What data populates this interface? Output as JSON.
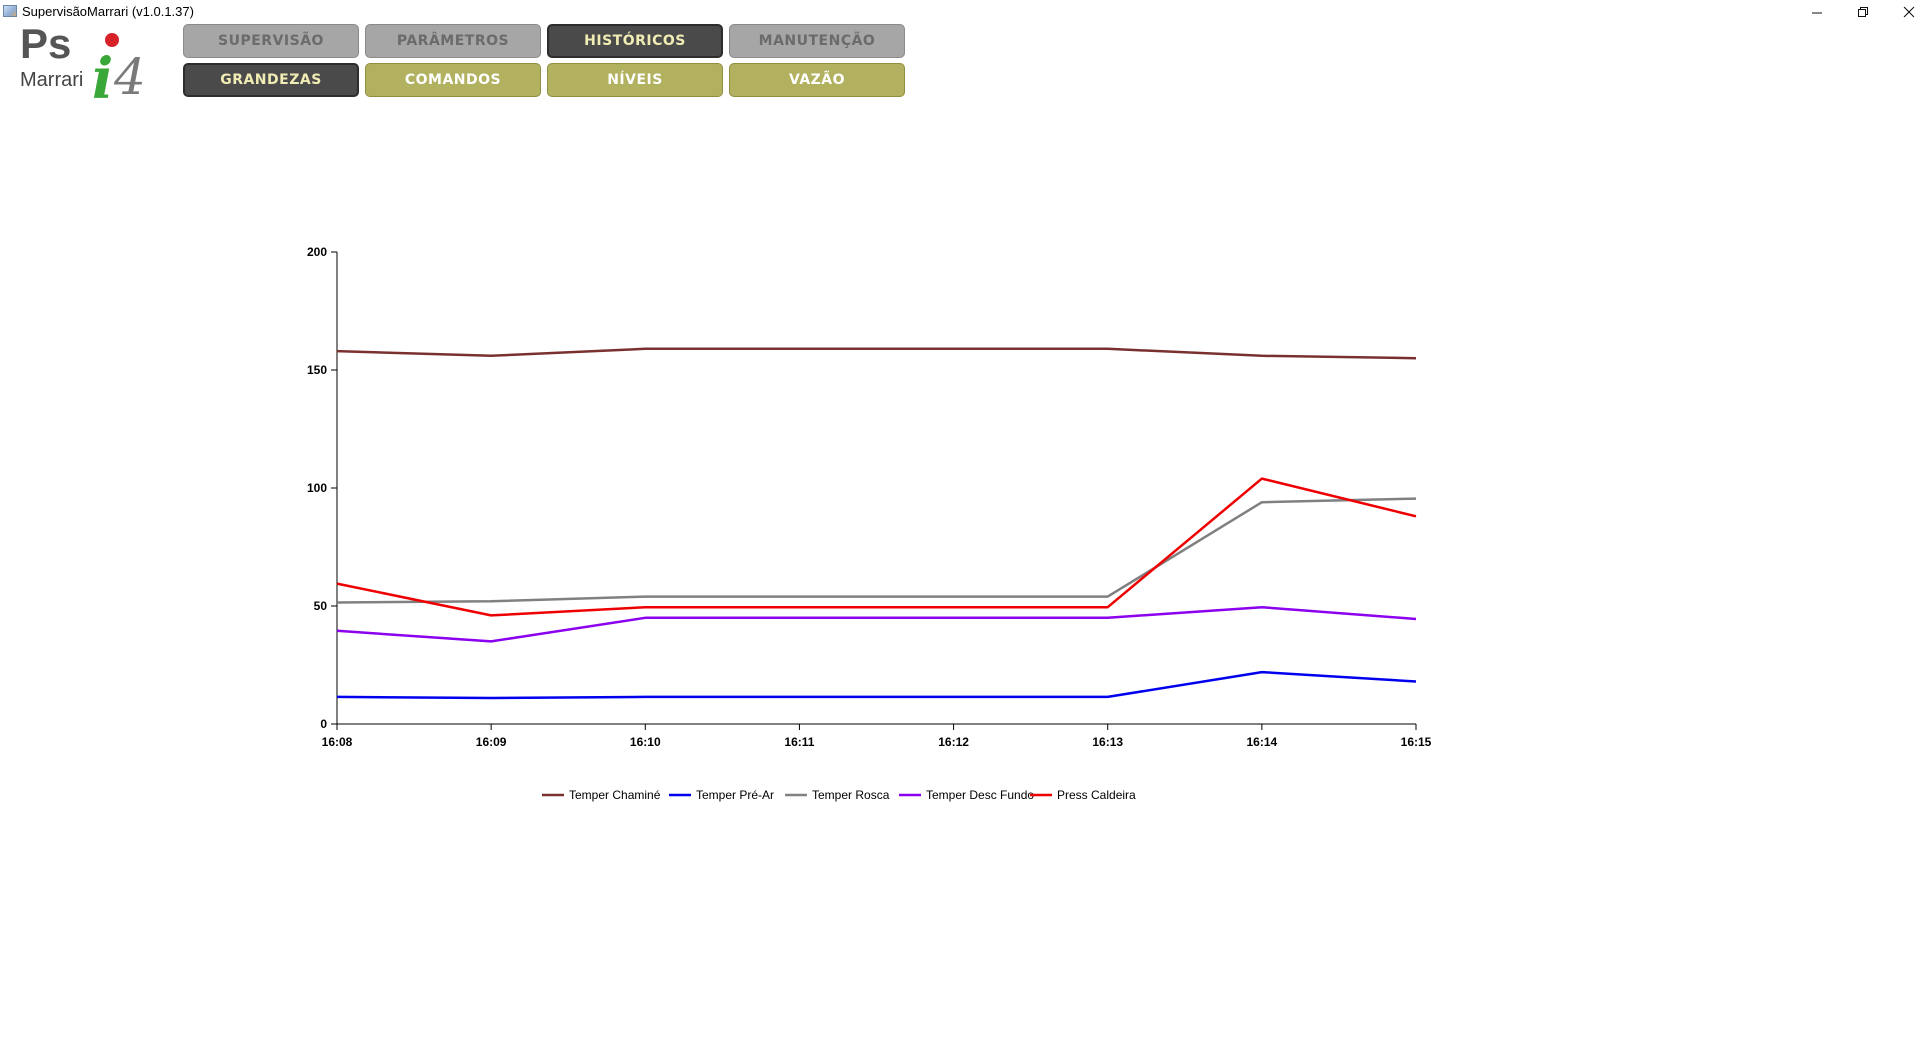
{
  "window": {
    "title": "SupervisãoMarrari (v1.0.1.37)",
    "minimize_glyph": "—",
    "restore_glyph": "❐",
    "close_glyph": "✕"
  },
  "logo": {
    "text_ps": "Ps",
    "text_marrari": "Marrari",
    "text_i": "i",
    "text_4": "4"
  },
  "nav": {
    "row1": [
      {
        "label": "SUPERVISÃO",
        "style": "grey"
      },
      {
        "label": "PARÂMETROS",
        "style": "grey"
      },
      {
        "label": "HISTÓRICOS",
        "style": "dark"
      },
      {
        "label": "MANUTENÇÃO",
        "style": "grey"
      }
    ],
    "row2": [
      {
        "label": "GRANDEZAS",
        "style": "dark"
      },
      {
        "label": "COMANDOS",
        "style": "olive"
      },
      {
        "label": "NÍVEIS",
        "style": "olive"
      },
      {
        "label": "VAZÃO",
        "style": "olive"
      }
    ]
  },
  "colors": {
    "nav_grey": "#a6a6a6",
    "nav_dark": "#4a4a4a",
    "nav_olive": "#b1b160",
    "logo_green": "#3aa838",
    "logo_red": "#d8222a",
    "logo_grey": "#7a7a7a"
  },
  "chart_data": {
    "type": "line",
    "title": "",
    "xlabel": "",
    "ylabel": "",
    "x": [
      "16:08",
      "16:09",
      "16:10",
      "16:11",
      "16:12",
      "16:13",
      "16:14",
      "16:15"
    ],
    "yticks": [
      0,
      50,
      100,
      150,
      200
    ],
    "ylim": [
      0,
      200
    ],
    "grid": false,
    "legend_position": "bottom",
    "series": [
      {
        "name": "Temper Chaminé",
        "color": "#7b3030",
        "values": [
          158,
          156,
          159,
          159,
          159,
          159,
          156,
          155
        ]
      },
      {
        "name": "Temper Pré-Ar",
        "color": "#0000ee",
        "values": [
          11.5,
          11,
          11.5,
          11.5,
          11.5,
          11.5,
          22,
          18
        ]
      },
      {
        "name": "Temper Rosca",
        "color": "#808080",
        "values": [
          51.5,
          52,
          54,
          54,
          54,
          54,
          94,
          95.5
        ]
      },
      {
        "name": "Temper Desc Fundo",
        "color": "#8b00ee",
        "values": [
          39.5,
          35,
          45,
          45,
          45,
          45,
          49.5,
          44.5
        ]
      },
      {
        "name": "Press Caldeira",
        "color": "#ee0000",
        "values": [
          59.5,
          46,
          49.5,
          49.5,
          49.5,
          49.5,
          104,
          88
        ]
      }
    ]
  }
}
